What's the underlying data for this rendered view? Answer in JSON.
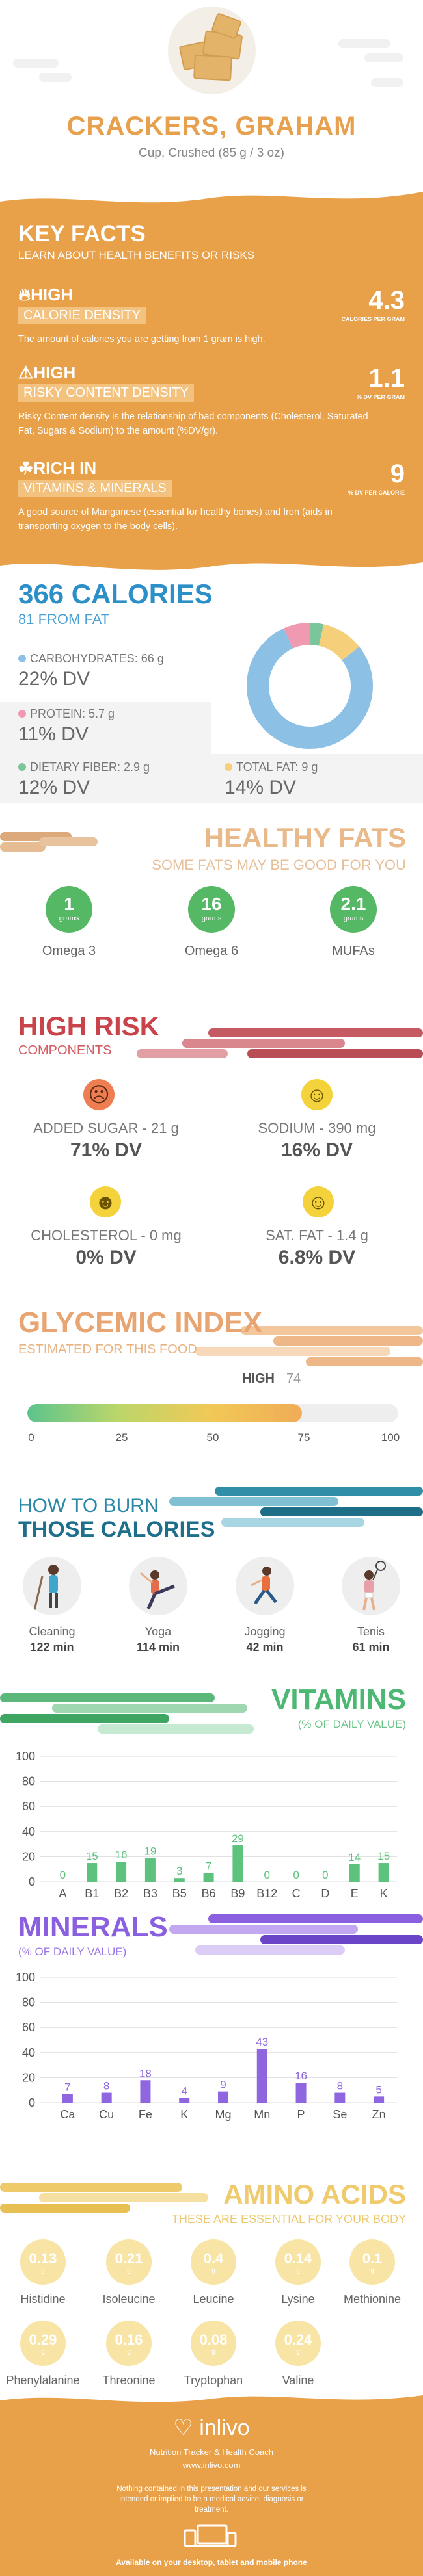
{
  "header": {
    "title": "CRACKERS, GRAHAM",
    "serving": "Cup, Crushed (85 g / 3 oz)"
  },
  "key_facts": {
    "title": "KEY FACTS",
    "subtitle": "LEARN ABOUT HEALTH BENEFITS OR RISKS",
    "items": [
      {
        "level": "HIGH",
        "label": "CALORIE DENSITY",
        "desc": "The amount of calories you are getting from 1 gram is high.",
        "value": "4.3",
        "unit": "CALORIES PER GRAM",
        "icon": "flame-icon"
      },
      {
        "level": "HIGH",
        "label": "RISKY CONTENT DENSITY",
        "desc": "Risky Content density is the relationship of bad components (Cholesterol, Saturated Fat, Sugars & Sodium) to the amount (%DV/gr).",
        "value": "1.1",
        "unit": "% DV PER GRAM",
        "icon": "warning-icon"
      },
      {
        "level": "RICH  IN",
        "label": "VITAMINS & MINERALS",
        "desc": "A good source of Manganese (essential for healthy bones) and Iron (aids in transporting oxygen to the body cells).",
        "value": "9",
        "unit": "% DV PER CALORIE",
        "icon": "leaf-icon"
      }
    ]
  },
  "calories": {
    "total": "366 CALORIES",
    "from_fat": "81 FROM FAT",
    "macros": [
      {
        "label": "CARBOHYDRATES: 66 g",
        "dv": "22% DV",
        "color": "#8cc0e4",
        "grams": 66
      },
      {
        "label": "PROTEIN: 5.7 g",
        "dv": "11% DV",
        "color": "#f09ab1",
        "grams": 5.7
      },
      {
        "label": "DIETARY FIBER: 2.9 g",
        "dv": "12% DV",
        "color": "#7cc59a",
        "grams": 2.9
      },
      {
        "label": "TOTAL FAT: 9 g",
        "dv": "14% DV",
        "color": "#f6cf7b",
        "grams": 9
      }
    ]
  },
  "healthy_fats": {
    "title": "HEALTHY FATS",
    "subtitle": "SOME FATS MAY BE GOOD FOR YOU",
    "unit": "grams",
    "items": [
      {
        "value": "1",
        "name": "Omega 3"
      },
      {
        "value": "16",
        "name": "Omega 6"
      },
      {
        "value": "2.1",
        "name": "MUFAs"
      }
    ]
  },
  "high_risk": {
    "title": "HIGH RISK",
    "subtitle": "COMPONENTS",
    "items": [
      {
        "label": "ADDED SUGAR - 21 g",
        "dv": "71% DV",
        "face": "☹",
        "face_color": "#ef7d52"
      },
      {
        "label": "SODIUM - 390 mg",
        "dv": "16% DV",
        "face": "☺",
        "face_color": "#f4d23b"
      },
      {
        "label": "CHOLESTEROL - 0 mg",
        "dv": "0% DV",
        "face": "☻",
        "face_color": "#f4d23b"
      },
      {
        "label": "SAT. FAT - 1.4 g",
        "dv": "6.8% DV",
        "face": "☺",
        "face_color": "#f4d23b"
      }
    ]
  },
  "glycemic": {
    "title": "GLYCEMIC INDEX",
    "subtitle": "ESTIMATED FOR THIS FOOD",
    "level": "HIGH",
    "score": "74",
    "score_value": 74,
    "ticks": [
      "0",
      "25",
      "50",
      "75",
      "100"
    ]
  },
  "burn": {
    "title_line1": "HOW TO BURN",
    "title_line2": "THOSE CALORIES",
    "activities": [
      {
        "name": "Cleaning",
        "minutes": "122 min"
      },
      {
        "name": "Yoga",
        "minutes": "114 min"
      },
      {
        "name": "Jogging",
        "minutes": "42 min"
      },
      {
        "name": "Tenis",
        "minutes": "61 min"
      }
    ]
  },
  "vitamins": {
    "title": "VITAMINS",
    "subtitle": "(% OF DAILY VALUE)",
    "color": "#5cc27d"
  },
  "minerals": {
    "title": "MINERALS",
    "subtitle": "(% OF DAILY VALUE)",
    "color": "#8f66e0"
  },
  "chart_data": [
    {
      "type": "bar",
      "title": "VITAMINS",
      "categories": [
        "A",
        "B1",
        "B2",
        "B3",
        "B5",
        "B6",
        "B9",
        "B12",
        "C",
        "D",
        "E",
        "K"
      ],
      "values": [
        0,
        15,
        16,
        19,
        3,
        7,
        29,
        0,
        0,
        0,
        14,
        15
      ],
      "yticks": [
        0,
        20,
        40,
        60,
        80,
        100
      ],
      "ylim": [
        0,
        100
      ],
      "grid": true
    },
    {
      "type": "bar",
      "title": "MINERALS",
      "categories": [
        "Ca",
        "Cu",
        "Fe",
        "K",
        "Mg",
        "Mn",
        "P",
        "Se",
        "Zn"
      ],
      "values": [
        7,
        8,
        18,
        4,
        9,
        43,
        16,
        8,
        5
      ],
      "yticks": [
        0,
        20,
        40,
        60,
        80,
        100
      ],
      "ylim": [
        0,
        100
      ],
      "grid": true
    }
  ],
  "amino": {
    "title": "AMINO ACIDS",
    "subtitle": "THESE ARE ESSENTIAL FOR YOUR BODY",
    "unit": "g",
    "items": [
      {
        "value": "0.13",
        "name": "Histidine"
      },
      {
        "value": "0.21",
        "name": "Isoleucine"
      },
      {
        "value": "0.4",
        "name": "Leucine"
      },
      {
        "value": "0.14",
        "name": "Lysine"
      },
      {
        "value": "0.1",
        "name": "Methionine"
      },
      {
        "value": "0.29",
        "name": "Phenylalanine"
      },
      {
        "value": "0.16",
        "name": "Threonine"
      },
      {
        "value": "0.08",
        "name": "Tryptophan"
      },
      {
        "value": "0.24",
        "name": "Valine"
      }
    ]
  },
  "footer": {
    "brand": "inlivo",
    "tagline": "Nutrition Tracker & Health Coach",
    "url": "www.inlivo.com",
    "disclaimer": "Nothing contained in this presentation and our services is intended or implied to be a medical advice, diagnosis or treatment.",
    "available": "Available on your desktop, tablet and mobile phone"
  }
}
